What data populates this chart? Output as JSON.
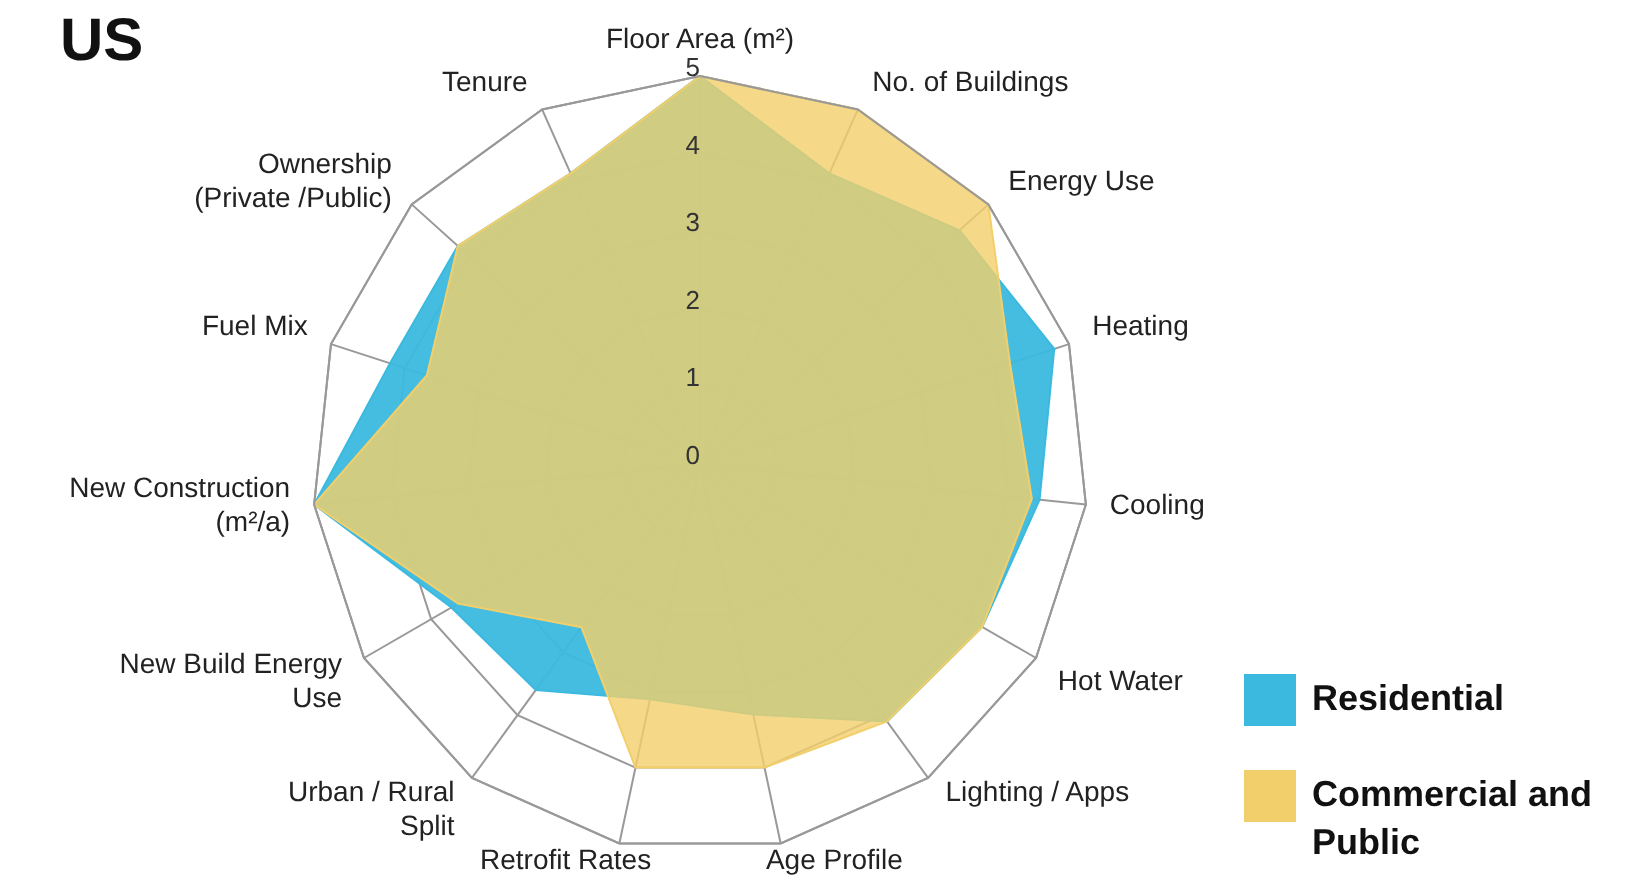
{
  "chart_data": {
    "type": "radar",
    "title": "US",
    "categories": [
      "Floor Area (m²)",
      "No. of Buildings",
      "Energy Use",
      "Heating",
      "Cooling",
      "Hot Water",
      "Lighting / Apps",
      "Age Profile",
      "Retrofit Rates",
      "Urban / Rural Split",
      "New Build Energy Use",
      "New Construction (m²/a)",
      "Fuel Mix",
      "Ownership (Private /Public)",
      "Tenure"
    ],
    "series": [
      {
        "name": "Residential",
        "color": "#3bb9df",
        "values": [
          5,
          4.1,
          4.5,
          4.8,
          4.4,
          4.2,
          4.1,
          3.3,
          3.1,
          3.6,
          3.7,
          5,
          4.2,
          4.2,
          4.1
        ]
      },
      {
        "name": "Commercial and Public",
        "color": "#f2cf6a",
        "values": [
          5,
          5,
          5,
          4.2,
          4.3,
          4.2,
          4.1,
          4,
          4,
          2.6,
          3.6,
          5,
          3.7,
          4.2,
          4.1
        ]
      }
    ],
    "ylim": [
      0,
      5
    ],
    "yticks": [
      0,
      1,
      2,
      3,
      4,
      5
    ],
    "grid": true,
    "legend": "bottom right"
  }
}
